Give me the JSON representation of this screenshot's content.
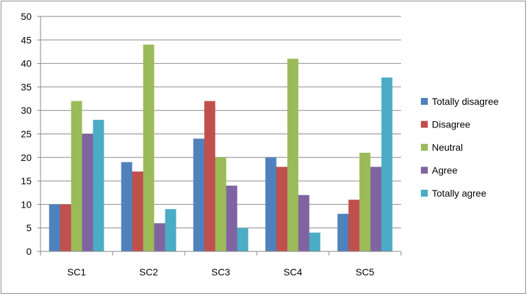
{
  "chart_data": {
    "type": "bar",
    "title": "",
    "xlabel": "",
    "ylabel": "",
    "categories": [
      "SC1",
      "SC2",
      "SC3",
      "SC4",
      "SC5"
    ],
    "ylim": [
      0,
      50
    ],
    "yticks": [
      0,
      5,
      10,
      15,
      20,
      25,
      30,
      35,
      40,
      45,
      50
    ],
    "grid": true,
    "legend_position": "right",
    "series": [
      {
        "name": "Totally disagree",
        "color": "#4F81BD",
        "values": [
          10,
          19,
          24,
          20,
          8
        ]
      },
      {
        "name": "Disagree",
        "color": "#C0504D",
        "values": [
          10,
          17,
          32,
          18,
          11
        ]
      },
      {
        "name": "Neutral",
        "color": "#9BBB59",
        "values": [
          32,
          44,
          20,
          41,
          21
        ]
      },
      {
        "name": "Agree",
        "color": "#8064A2",
        "values": [
          25,
          6,
          14,
          12,
          18
        ]
      },
      {
        "name": "Totally agree",
        "color": "#4BACC6",
        "values": [
          28,
          9,
          5,
          4,
          37
        ]
      }
    ]
  }
}
